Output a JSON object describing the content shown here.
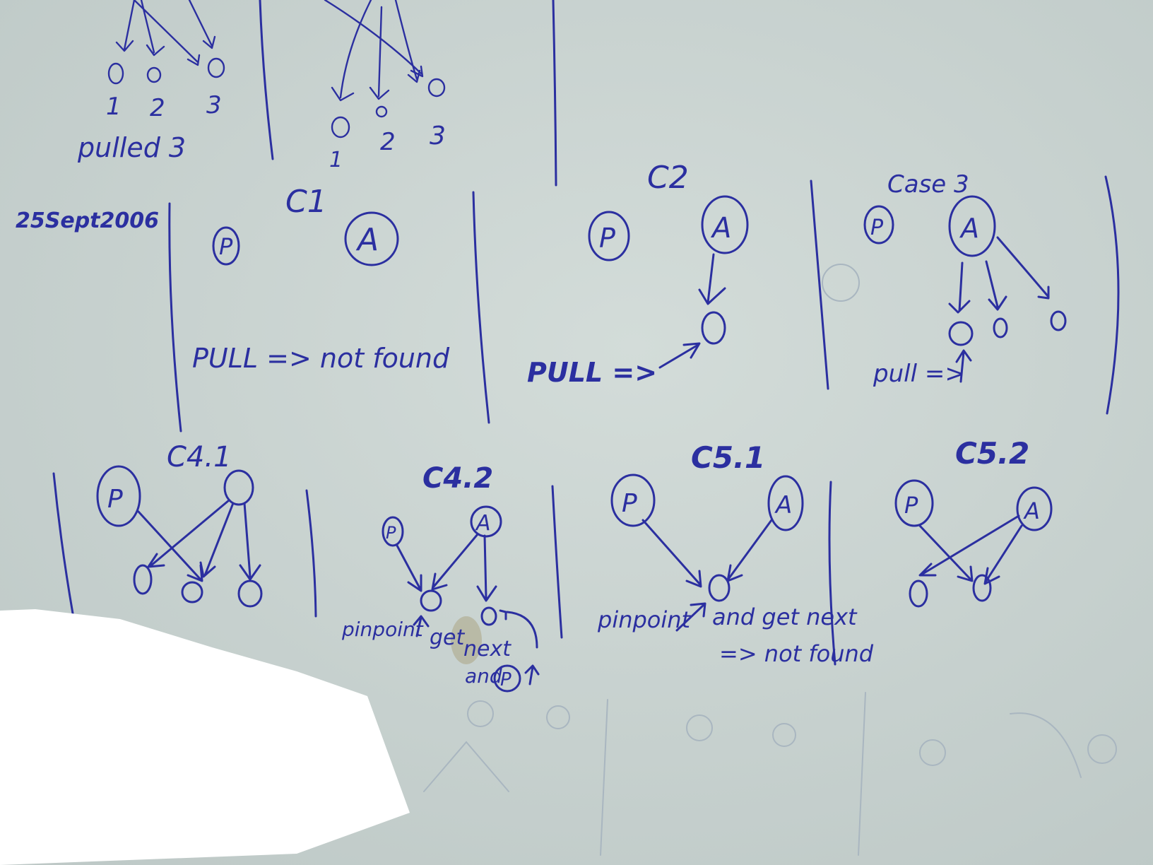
{
  "date": "25Sept2006",
  "top": {
    "left_nodes": [
      "1",
      "2",
      "3"
    ],
    "pulled_label": "pulled 3",
    "right_nodes": [
      "1",
      "2",
      "3"
    ]
  },
  "c1": {
    "title": "C1",
    "p": "P",
    "a": "A",
    "result": "PULL => not found"
  },
  "c2": {
    "title": "C2",
    "p": "P",
    "a": "A",
    "pull": "PULL =>"
  },
  "c3": {
    "title": "Case 3",
    "p": "P",
    "a": "A",
    "pull": "pull =>"
  },
  "c41": {
    "title": "C4.1",
    "p": "P"
  },
  "c42": {
    "title": "C4.2",
    "p": "P",
    "a": "A",
    "pinpoint": "pinpoint",
    "get": "get",
    "next": "next",
    "and": "and",
    "p2": "P"
  },
  "c51": {
    "title": "C5.1",
    "p": "P",
    "a": "A",
    "pinpoint": "pinpoint",
    "and_get": "and get next",
    "not_found": "=> not found"
  },
  "c52": {
    "title": "C5.2",
    "p": "P",
    "a": "A"
  },
  "colors": {
    "paper": "#c9d2d0",
    "ink": "#2b2fa0"
  }
}
